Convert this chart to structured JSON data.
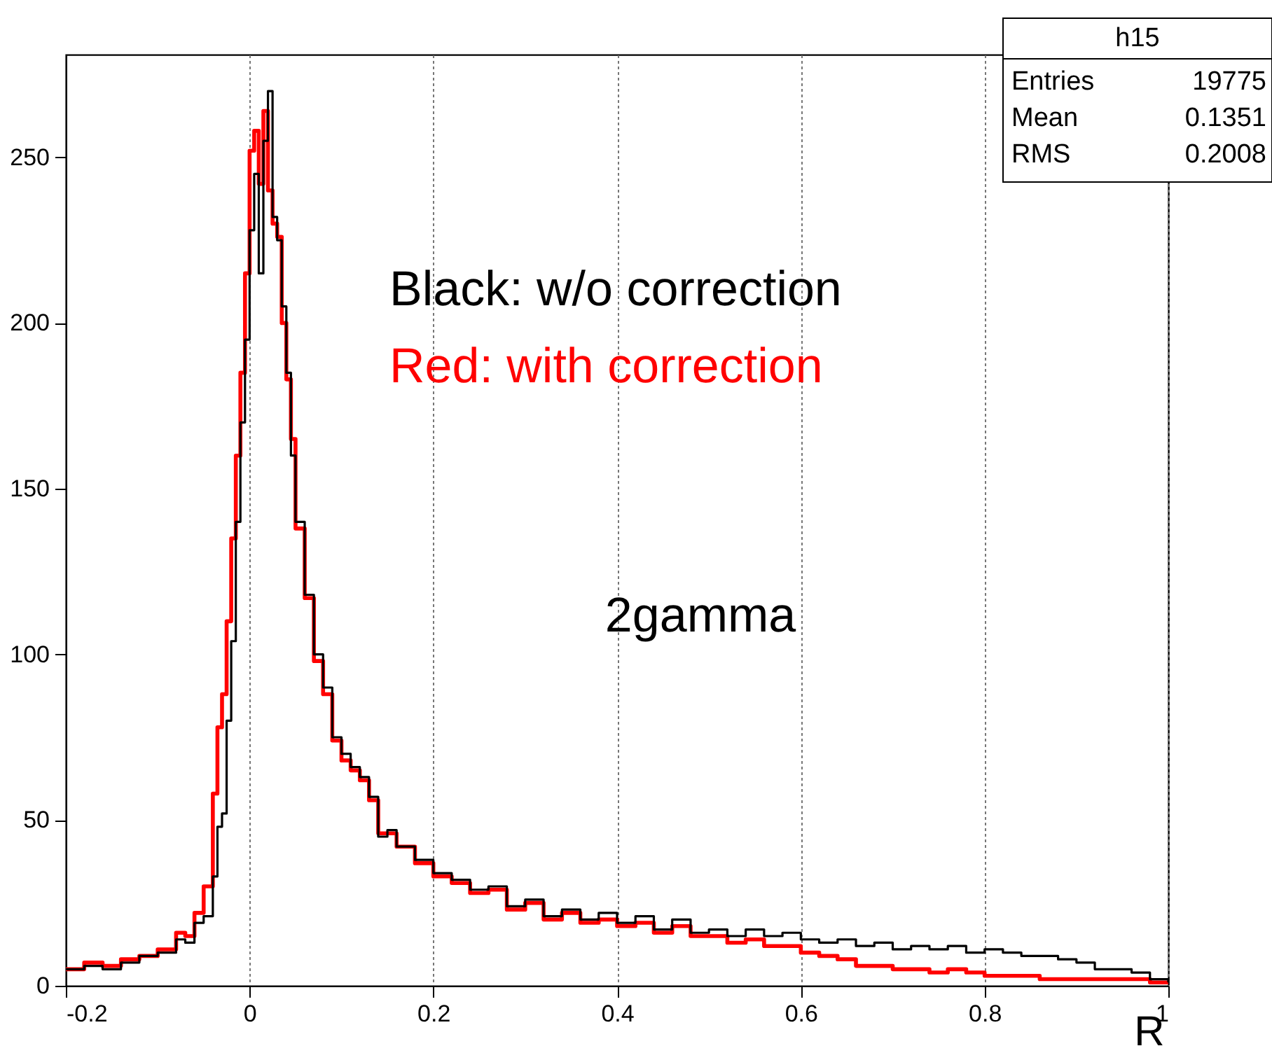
{
  "chart_data": {
    "type": "step",
    "xlabel": "R",
    "x": [
      -0.2,
      -0.18,
      -0.16,
      -0.14,
      -0.12,
      -0.1,
      -0.08,
      -0.07,
      -0.06,
      -0.05,
      -0.04,
      -0.035,
      -0.03,
      -0.025,
      -0.02,
      -0.015,
      -0.01,
      -0.005,
      0,
      0.005,
      0.01,
      0.015,
      0.02,
      0.025,
      0.03,
      0.035,
      0.04,
      0.045,
      0.05,
      0.06,
      0.07,
      0.08,
      0.09,
      0.1,
      0.11,
      0.12,
      0.13,
      0.14,
      0.15,
      0.16,
      0.18,
      0.2,
      0.22,
      0.24,
      0.26,
      0.28,
      0.3,
      0.32,
      0.34,
      0.36,
      0.38,
      0.4,
      0.42,
      0.44,
      0.46,
      0.48,
      0.5,
      0.52,
      0.54,
      0.56,
      0.58,
      0.6,
      0.62,
      0.64,
      0.66,
      0.68,
      0.7,
      0.72,
      0.74,
      0.76,
      0.78,
      0.8,
      0.82,
      0.84,
      0.86,
      0.88,
      0.9,
      0.92,
      0.94,
      0.96,
      0.98,
      1
    ],
    "series": [
      {
        "name": "Black: w/o correction",
        "color": "#000000",
        "values": [
          5,
          6,
          5,
          7,
          9,
          10,
          14,
          13,
          19,
          21,
          33,
          48,
          52,
          80,
          104,
          140,
          170,
          195,
          228,
          245,
          215,
          255,
          270,
          232,
          225,
          205,
          185,
          160,
          140,
          118,
          100,
          90,
          75,
          70,
          66,
          63,
          57,
          45,
          47,
          42,
          38,
          34,
          32,
          29,
          30,
          24,
          26,
          21,
          23,
          20,
          22,
          19,
          21,
          17,
          20,
          16,
          17,
          15,
          17,
          15,
          16,
          14,
          13,
          14,
          12,
          13,
          11,
          12,
          11,
          12,
          10,
          11,
          10,
          9,
          9,
          8,
          7,
          5,
          5,
          4,
          2,
          1
        ]
      },
      {
        "name": "Red: with correction",
        "color": "#ff0000",
        "values": [
          5,
          7,
          6,
          8,
          9,
          11,
          16,
          15,
          22,
          30,
          58,
          78,
          88,
          110,
          135,
          160,
          185,
          215,
          252,
          258,
          242,
          264,
          240,
          230,
          226,
          200,
          183,
          165,
          138,
          117,
          98,
          88,
          74,
          68,
          65,
          62,
          56,
          46,
          46,
          42,
          37,
          33,
          31,
          28,
          29,
          23,
          25,
          20,
          22,
          19,
          20,
          18,
          19,
          16,
          18,
          15,
          15,
          13,
          14,
          12,
          12,
          10,
          9,
          8,
          6,
          6,
          5,
          5,
          4,
          5,
          4,
          3,
          3,
          3,
          2,
          2,
          2,
          2,
          2,
          2,
          1,
          1
        ]
      }
    ],
    "xlim": [
      -0.2,
      1
    ],
    "xticks": [
      -0.2,
      0,
      0.2,
      0.4,
      0.6,
      0.8,
      1
    ],
    "ylim": [
      0,
      281
    ],
    "yticks": [
      0,
      50,
      100,
      150,
      200,
      250
    ],
    "grid": "x",
    "annotations": [
      "2gamma",
      "h15",
      "Entries",
      "19775",
      "Mean",
      "0.1351",
      "RMS",
      "0.2008"
    ]
  }
}
